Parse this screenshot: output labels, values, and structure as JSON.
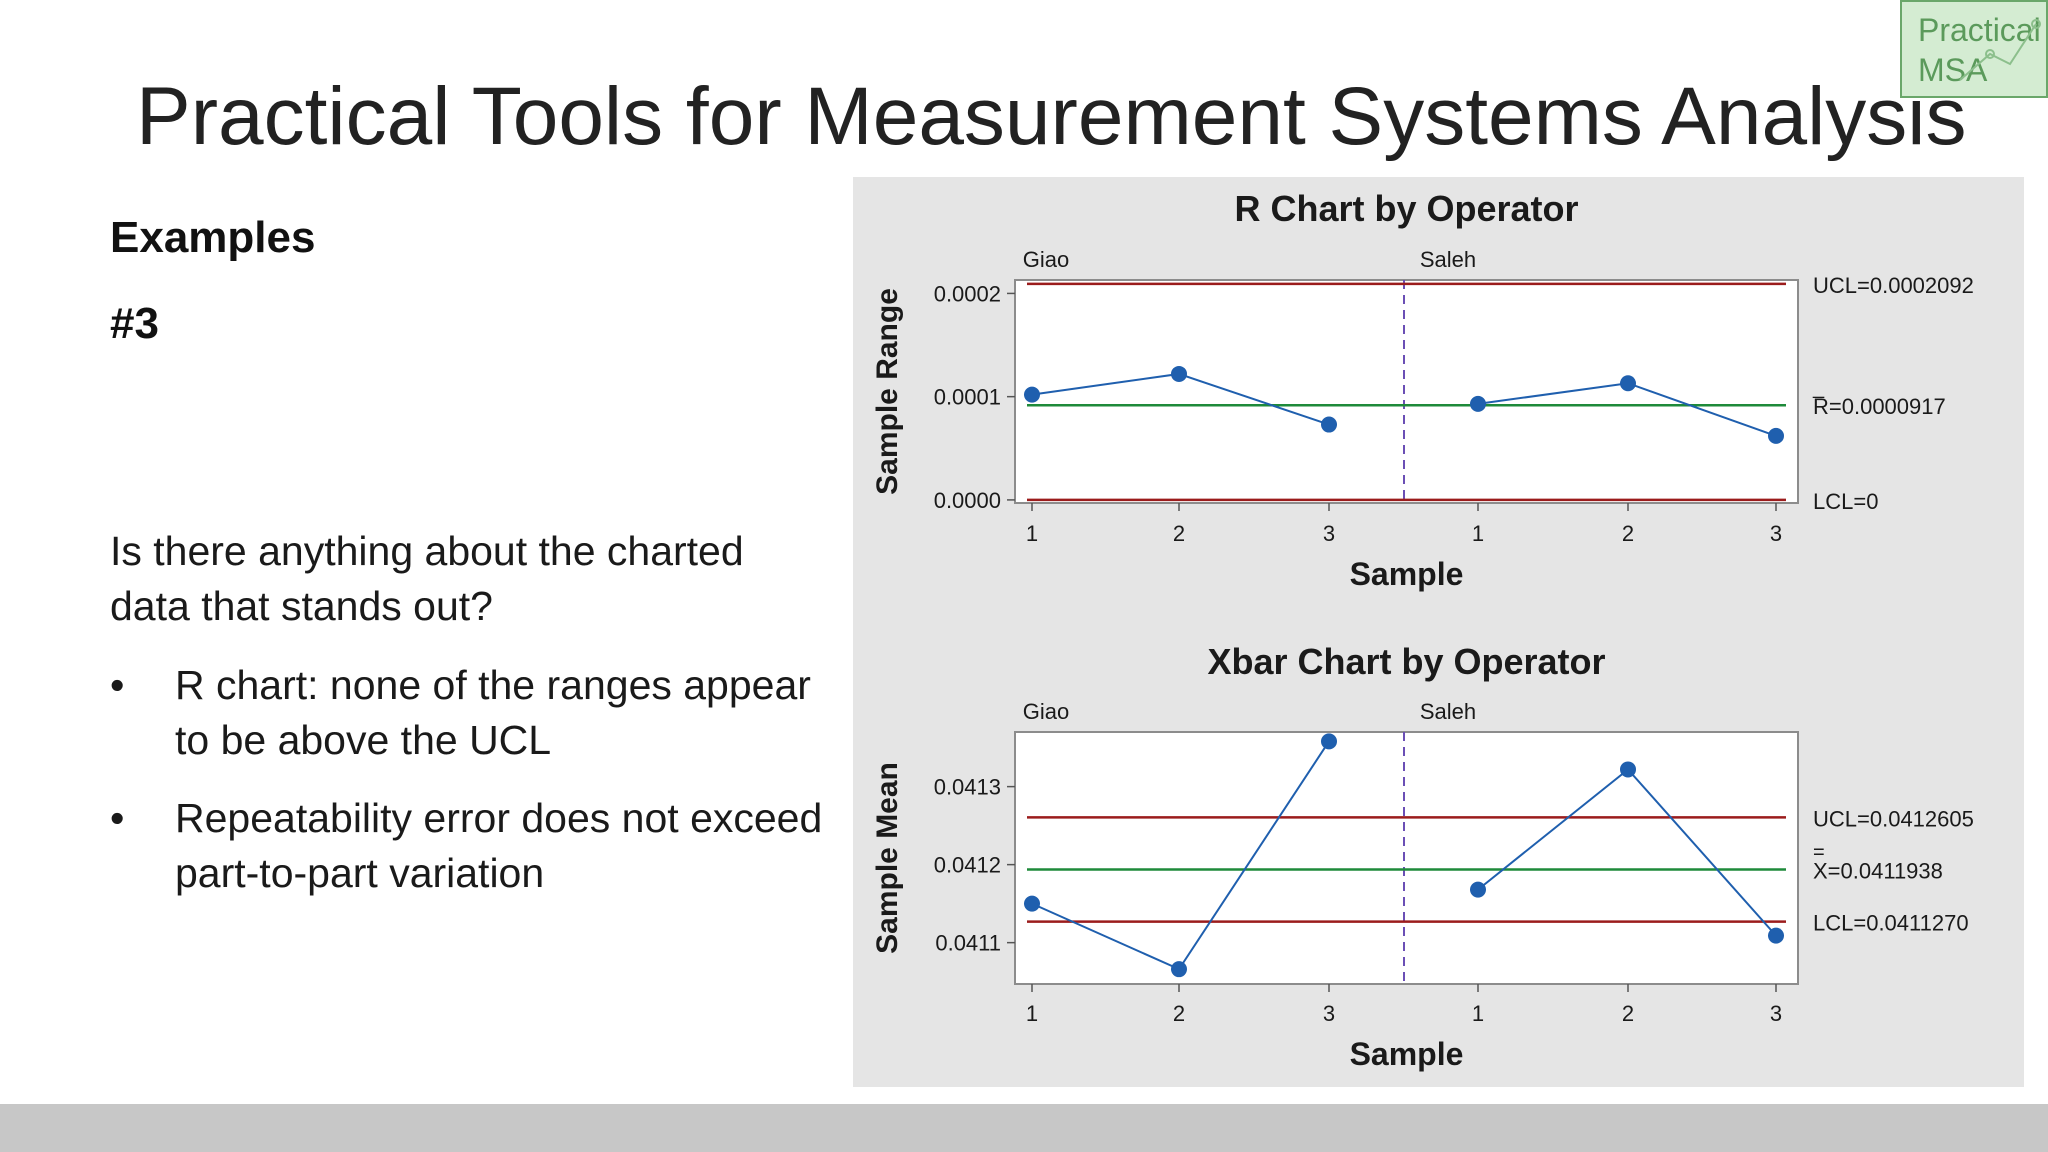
{
  "slide": {
    "title": "Practical Tools for Measurement Systems Analysis",
    "heading": "Examples",
    "subheading": "#3",
    "question": "Is there anything about the charted data that stands out?",
    "bullets": [
      "R chart: none of the ranges appear to be above the UCL",
      "Repeatability error does not exceed part-to-part variation"
    ],
    "bullet_symbol": "•",
    "logo_text": "Practical\nMSA"
  },
  "colors": {
    "limit_line": "#9b1c1c",
    "center_line": "#1e8a3a",
    "series": "#1f5fae",
    "divider": "#6b4fb5",
    "panel_bg": "#e5e5e5",
    "footer": "#c7c7c7"
  },
  "chart_data": [
    {
      "type": "line",
      "title": "R Chart by Operator",
      "xlabel": "Sample",
      "ylabel": "Sample Range",
      "panels": [
        "Giao",
        "Saleh"
      ],
      "x": [
        "1",
        "2",
        "3",
        "1",
        "2",
        "3"
      ],
      "series": [
        {
          "values": [
            0.000102,
            0.000122,
            7.3e-05,
            9.3e-05,
            0.000113,
            6.2e-05
          ]
        }
      ],
      "yticks": [
        0.0,
        0.0001,
        0.0002
      ],
      "ytick_labels": [
        "0.0000",
        "0.0001",
        "0.0002"
      ],
      "ylim": [
        -3e-06,
        0.000213
      ],
      "ucl": 0.0002092,
      "center": 9.17e-05,
      "lcl": 0,
      "ucl_label": "UCL=0.0002092",
      "center_label": "R=0.0000917",
      "center_symbol_bar": "_",
      "lcl_label": "LCL=0"
    },
    {
      "type": "line",
      "title": "Xbar Chart by Operator",
      "xlabel": "Sample",
      "ylabel": "Sample Mean",
      "panels": [
        "Giao",
        "Saleh"
      ],
      "x": [
        "1",
        "2",
        "3",
        "1",
        "2",
        "3"
      ],
      "series": [
        {
          "values": [
            0.04115,
            0.041066,
            0.041358,
            0.041168,
            0.041322,
            0.041109
          ]
        }
      ],
      "yticks": [
        0.0411,
        0.0412,
        0.0413
      ],
      "ytick_labels": [
        "0.0411",
        "0.0412",
        "0.0413"
      ],
      "ylim": [
        0.041047,
        0.04137
      ],
      "ucl": 0.0412605,
      "center": 0.0411938,
      "lcl": 0.041127,
      "ucl_label": "UCL=0.0412605",
      "center_label": "X=0.0411938",
      "center_symbol_bar": "=",
      "lcl_label": "LCL=0.0411270"
    }
  ]
}
